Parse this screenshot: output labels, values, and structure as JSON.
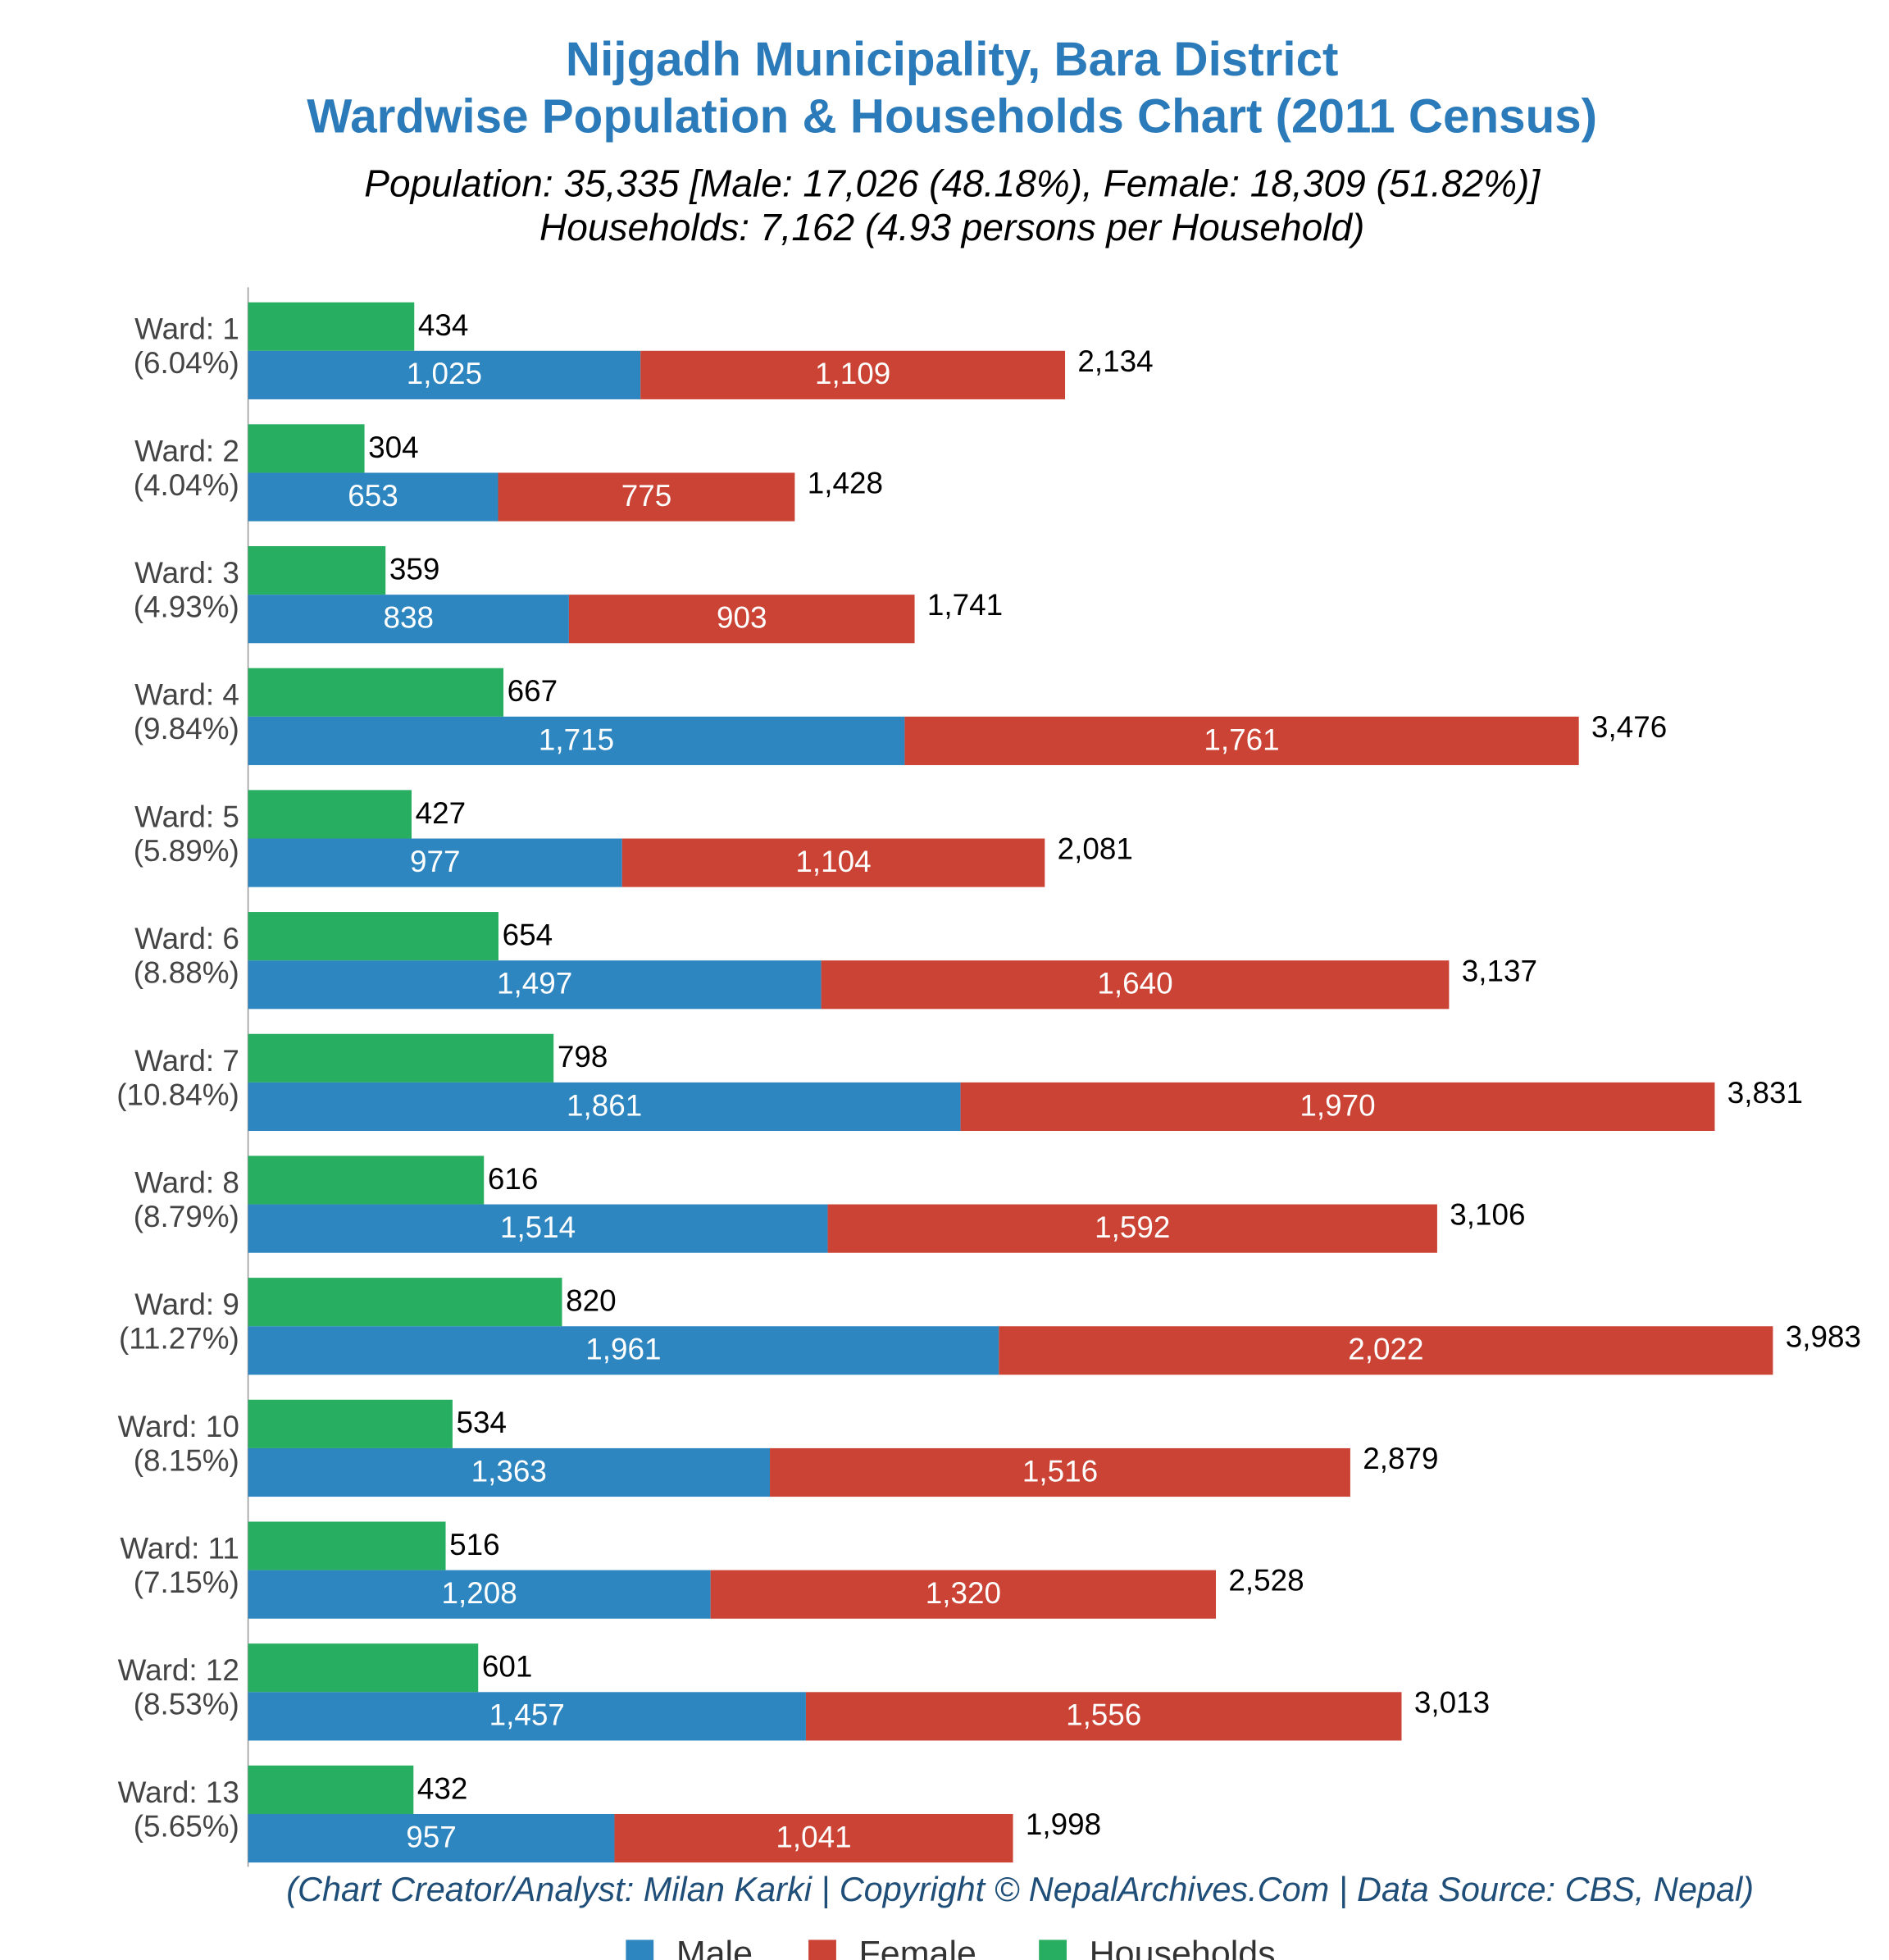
{
  "chart_data": {
    "type": "bar",
    "title": "Nijgadh Municipality, Bara District",
    "title2": "Wardwise Population & Households Chart (2011 Census)",
    "subtitle": "Population: 35,335 [Male: 17,026 (48.18%), Female: 18,309 (51.82%)]",
    "subtitle2": "Households: 7,162 (4.93 persons per Household)",
    "footer": "(Chart Creator/Analyst: Milan Karki | Copyright © NepalArchives.Com | Data Source: CBS, Nepal)",
    "categories": [
      "Ward: 1",
      "Ward: 2",
      "Ward: 3",
      "Ward: 4",
      "Ward: 5",
      "Ward: 6",
      "Ward: 7",
      "Ward: 8",
      "Ward: 9",
      "Ward: 10",
      "Ward: 11",
      "Ward: 12",
      "Ward: 13"
    ],
    "shares": [
      "(6.04%)",
      "(4.04%)",
      "(4.93%)",
      "(9.84%)",
      "(5.89%)",
      "(8.88%)",
      "(10.84%)",
      "(8.79%)",
      "(11.27%)",
      "(8.15%)",
      "(7.15%)",
      "(8.53%)",
      "(5.65%)"
    ],
    "xlim": [
      0,
      4250
    ],
    "series": [
      {
        "name": "Male",
        "color": "#2e86c1",
        "values": [
          1025,
          653,
          838,
          1715,
          977,
          1497,
          1861,
          1514,
          1961,
          1363,
          1208,
          1457,
          957
        ],
        "value_labels": [
          "1,025",
          "653",
          "838",
          "1,715",
          "977",
          "1,497",
          "1,861",
          "1,514",
          "1,961",
          "1,363",
          "1,208",
          "1,457",
          "957"
        ]
      },
      {
        "name": "Female",
        "color": "#cb4335",
        "values": [
          1109,
          775,
          903,
          1761,
          1104,
          1640,
          1970,
          1592,
          2022,
          1516,
          1320,
          1556,
          1041
        ],
        "value_labels": [
          "1,109",
          "775",
          "903",
          "1,761",
          "1,104",
          "1,640",
          "1,970",
          "1,592",
          "2,022",
          "1,516",
          "1,320",
          "1,556",
          "1,041"
        ]
      },
      {
        "name": "Households",
        "color": "#27ae60",
        "values": [
          434,
          304,
          359,
          667,
          427,
          654,
          798,
          616,
          820,
          534,
          516,
          601,
          432
        ]
      }
    ],
    "total_labels": [
      "2,134",
      "1,428",
      "1,741",
      "3,476",
      "2,081",
      "3,137",
      "3,831",
      "3,106",
      "3,983",
      "2,879",
      "2,528",
      "3,013",
      "1,998"
    ]
  }
}
